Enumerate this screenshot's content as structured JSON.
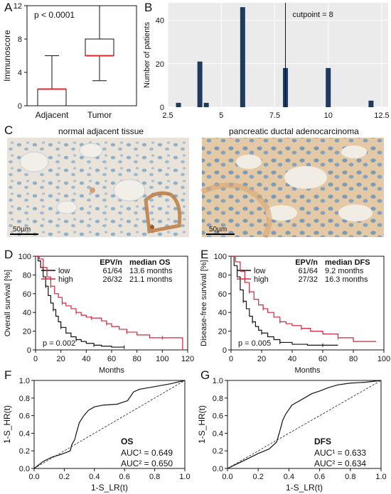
{
  "panels": {
    "A": "A",
    "B": "B",
    "C": "C",
    "D": "D",
    "E": "E",
    "F": "F",
    "G": "G"
  },
  "micro": {
    "left_caption": "normal adjacent tissue",
    "right_caption": "pancreatic ductal adenocarcinoma",
    "scale_label": "50µm"
  },
  "chart_data": [
    {
      "id": "A",
      "type": "boxplot",
      "annotation": "p < 0.0001",
      "ylabel": "Immunoscore",
      "ylim": [
        0,
        12
      ],
      "yticks": [
        0,
        4,
        8,
        12
      ],
      "categories": [
        "Adjacent",
        "Tumor"
      ],
      "boxes": [
        {
          "name": "Adjacent",
          "min": 0,
          "q1": 0,
          "median": 2,
          "q3": 2,
          "max": 6
        },
        {
          "name": "Tumor",
          "min": 3,
          "q1": 6,
          "median": 6,
          "q3": 8,
          "max": 12
        }
      ],
      "median_color": "#e8232a"
    },
    {
      "id": "B",
      "type": "bar",
      "ylabel": "Number of patients",
      "xlim": [
        2.5,
        12.8
      ],
      "xticks": [
        2.5,
        5.0,
        7.5,
        10.0,
        12.5
      ],
      "xtick_labels": [
        "2.5",
        "5",
        "7.5",
        "10",
        "12.5"
      ],
      "ylim": [
        0,
        48
      ],
      "yticks": [
        0,
        20,
        40
      ],
      "x": [
        3,
        4,
        4.3,
        6,
        8,
        10,
        12
      ],
      "values": [
        2,
        21,
        2,
        46,
        18,
        18,
        3
      ],
      "cutpoint": 8,
      "cutpoint_label": "cutpoint = 8",
      "bar_color": "#1f3a5a",
      "background": "#ebebeb"
    },
    {
      "id": "D",
      "type": "line",
      "subtype": "kaplan-meier",
      "xlabel": "Months",
      "ylabel": "Overall survival [%]",
      "xlim": [
        0,
        120
      ],
      "xticks": [
        0,
        20,
        40,
        60,
        80,
        100,
        120
      ],
      "ylim": [
        0,
        100
      ],
      "yticks": [
        0,
        20,
        40,
        60,
        80,
        100
      ],
      "pvalue": "p = 0.002",
      "legend": {
        "col_epv": "EPV/n",
        "col_median": "median OS"
      },
      "series": [
        {
          "name": "low",
          "epv": "61/64",
          "median": "13.6 months",
          "color": "#111111",
          "x": [
            0,
            2,
            4,
            6,
            8,
            10,
            12,
            14,
            16,
            18,
            20,
            24,
            28,
            32,
            36,
            40,
            46,
            52,
            60,
            70
          ],
          "y": [
            100,
            95,
            88,
            78,
            68,
            58,
            50,
            43,
            36,
            30,
            24,
            18,
            14,
            11,
            9,
            7,
            5,
            4,
            3,
            3
          ]
        },
        {
          "name": "high",
          "epv": "26/32",
          "median": "21.1 months",
          "color": "#d6223a",
          "x": [
            0,
            3,
            6,
            9,
            12,
            15,
            18,
            21,
            24,
            28,
            32,
            36,
            40,
            44,
            48,
            52,
            56,
            60,
            66,
            72,
            80,
            90,
            100,
            108,
            116
          ],
          "y": [
            100,
            97,
            88,
            78,
            68,
            60,
            56,
            50,
            47,
            44,
            40,
            37,
            35,
            34,
            34,
            31,
            28,
            25,
            22,
            19,
            16,
            13,
            13,
            13,
            0
          ]
        }
      ]
    },
    {
      "id": "E",
      "type": "line",
      "subtype": "kaplan-meier",
      "xlabel": "Months",
      "ylabel": "Disease-free survival [%]",
      "xlim": [
        0,
        100
      ],
      "xticks": [
        0,
        20,
        40,
        60,
        80,
        100
      ],
      "ylim": [
        0,
        100
      ],
      "yticks": [
        0,
        20,
        40,
        60,
        80,
        100
      ],
      "pvalue": "p = 0.005",
      "legend": {
        "col_epv": "EPV/n",
        "col_median": "median DFS"
      },
      "series": [
        {
          "name": "low",
          "epv": "61/64",
          "median": "9.2 months",
          "color": "#111111",
          "x": [
            0,
            2,
            4,
            6,
            8,
            10,
            12,
            14,
            16,
            18,
            20,
            24,
            28,
            32,
            40,
            50,
            60,
            70
          ],
          "y": [
            100,
            90,
            78,
            64,
            52,
            44,
            36,
            30,
            25,
            21,
            18,
            14,
            11,
            8,
            6,
            5,
            5,
            5
          ]
        },
        {
          "name": "high",
          "epv": "27/32",
          "median": "16.3 months",
          "color": "#d6223a",
          "x": [
            0,
            3,
            6,
            9,
            12,
            15,
            18,
            21,
            24,
            28,
            32,
            36,
            40,
            46,
            52,
            60,
            70,
            80,
            95
          ],
          "y": [
            100,
            94,
            84,
            72,
            62,
            54,
            48,
            44,
            40,
            35,
            30,
            28,
            26,
            23,
            20,
            17,
            13,
            9,
            9
          ]
        }
      ]
    },
    {
      "id": "F",
      "type": "line",
      "subtype": "roc",
      "xlabel": "1-S_LR(t)",
      "ylabel": "1-S_HR(t)",
      "xlim": [
        0,
        1
      ],
      "ylim": [
        0,
        1
      ],
      "xticks": [
        0.0,
        0.2,
        0.4,
        0.6,
        0.8,
        1.0
      ],
      "yticks": [
        0.0,
        0.2,
        0.4,
        0.6,
        0.8,
        1.0
      ],
      "label": "OS",
      "auc1": "AUC¹ = 0.649",
      "auc2": "AUC² = 0.650",
      "x": [
        0,
        0.06,
        0.12,
        0.18,
        0.24,
        0.25,
        0.27,
        0.28,
        0.3,
        0.33,
        0.36,
        0.4,
        0.46,
        0.55,
        0.62,
        0.66,
        0.7,
        0.8,
        0.9,
        1.0
      ],
      "y": [
        0,
        0.08,
        0.13,
        0.16,
        0.2,
        0.27,
        0.33,
        0.4,
        0.52,
        0.6,
        0.66,
        0.7,
        0.72,
        0.73,
        0.77,
        0.87,
        0.9,
        0.93,
        0.96,
        1.0
      ]
    },
    {
      "id": "G",
      "type": "line",
      "subtype": "roc",
      "xlabel": "1-S_LR(t)",
      "ylabel": "1-S_HR(t)",
      "xlim": [
        0,
        1
      ],
      "ylim": [
        0,
        1
      ],
      "xticks": [
        0.0,
        0.2,
        0.4,
        0.6,
        0.8,
        1.0
      ],
      "yticks": [
        0.0,
        0.2,
        0.4,
        0.6,
        0.8,
        1.0
      ],
      "label": "DFS",
      "auc1": "AUC¹ = 0.633",
      "auc2": "AUC² = 0.634",
      "x": [
        0,
        0.06,
        0.12,
        0.2,
        0.27,
        0.32,
        0.34,
        0.36,
        0.38,
        0.42,
        0.45,
        0.5,
        0.55,
        0.6,
        0.66,
        0.72,
        0.8,
        0.9,
        1.0
      ],
      "y": [
        0,
        0.05,
        0.1,
        0.17,
        0.22,
        0.3,
        0.42,
        0.55,
        0.62,
        0.72,
        0.75,
        0.8,
        0.85,
        0.88,
        0.92,
        0.95,
        0.97,
        0.98,
        1.0
      ]
    }
  ]
}
